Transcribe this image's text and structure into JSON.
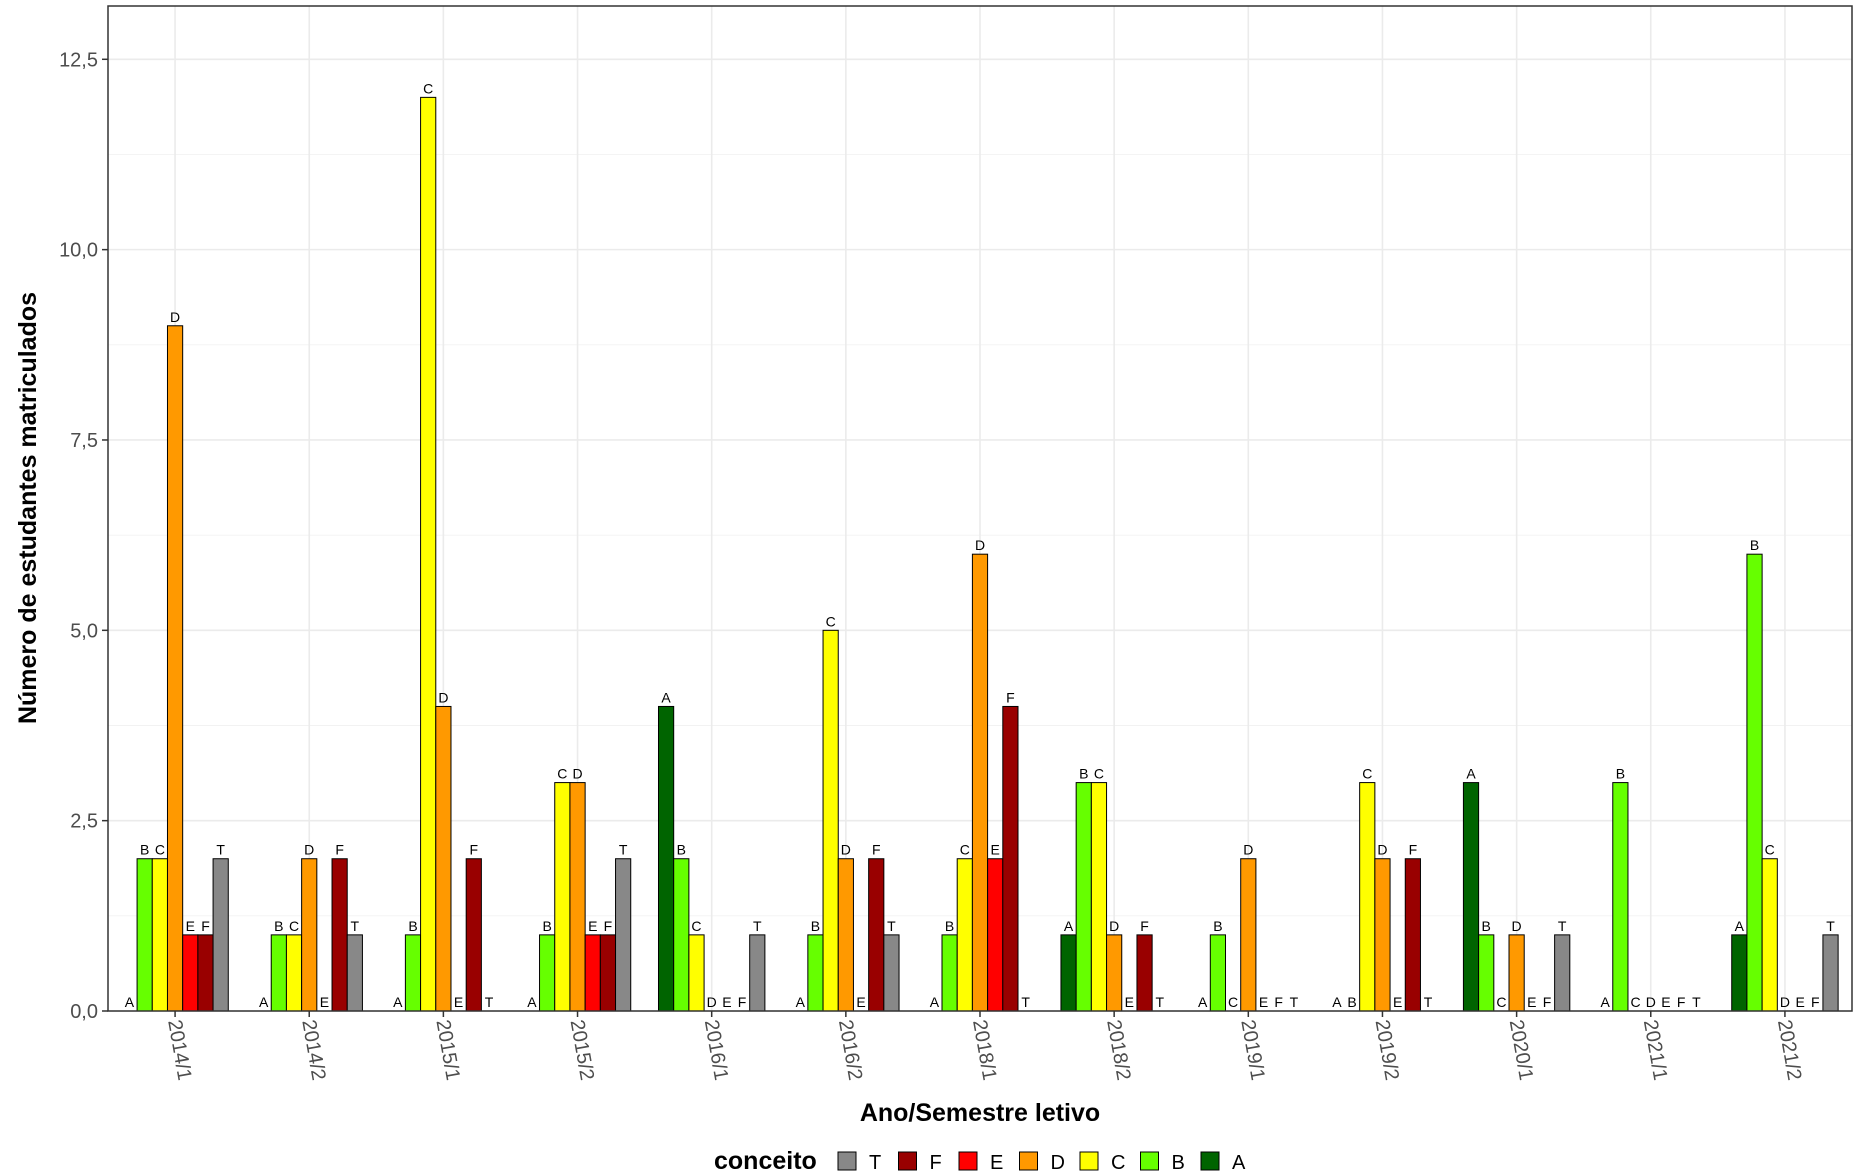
{
  "chart_data": {
    "type": "bar",
    "xlabel": "Ano/Semestre letivo",
    "ylabel": "Número de estudantes matriculados",
    "ylim": [
      0,
      13.2
    ],
    "yticks": [
      0,
      2.5,
      5,
      7.5,
      10,
      12.5
    ],
    "ytick_labels": [
      "0,0",
      "2,5",
      "5,0",
      "7,5",
      "10,0",
      "12,5"
    ],
    "grid": true,
    "legend_position": "bottom",
    "legend_title": "conceito",
    "categories": [
      "2014/1",
      "2014/2",
      "2015/1",
      "2015/2",
      "2016/1",
      "2016/2",
      "2018/1",
      "2018/2",
      "2019/1",
      "2019/2",
      "2020/1",
      "2021/1",
      "2021/2"
    ],
    "series": [
      {
        "name": "A",
        "color": "#006400",
        "values": [
          0,
          0,
          0,
          0,
          4,
          0,
          0,
          1,
          0,
          0,
          3,
          0,
          1
        ]
      },
      {
        "name": "B",
        "color": "#66FF00",
        "values": [
          2,
          1,
          1,
          1,
          2,
          1,
          1,
          3,
          1,
          0,
          1,
          3,
          6
        ]
      },
      {
        "name": "C",
        "color": "#FFFF00",
        "values": [
          2,
          1,
          12,
          3,
          1,
          5,
          2,
          3,
          0,
          3,
          0,
          0,
          2
        ]
      },
      {
        "name": "D",
        "color": "#FF9900",
        "values": [
          9,
          2,
          4,
          3,
          0,
          2,
          6,
          1,
          2,
          2,
          1,
          0,
          0
        ]
      },
      {
        "name": "E",
        "color": "#FF0000",
        "values": [
          1,
          0,
          0,
          1,
          0,
          0,
          2,
          0,
          0,
          0,
          0,
          0,
          0
        ]
      },
      {
        "name": "F",
        "color": "#990000",
        "values": [
          1,
          2,
          2,
          1,
          0,
          2,
          4,
          1,
          0,
          2,
          0,
          0,
          0
        ]
      },
      {
        "name": "T",
        "color": "#888888",
        "values": [
          2,
          1,
          0,
          2,
          1,
          1,
          0,
          0,
          0,
          0,
          1,
          0,
          1
        ]
      }
    ],
    "legend_order": [
      "T",
      "F",
      "E",
      "D",
      "C",
      "B",
      "A"
    ]
  }
}
